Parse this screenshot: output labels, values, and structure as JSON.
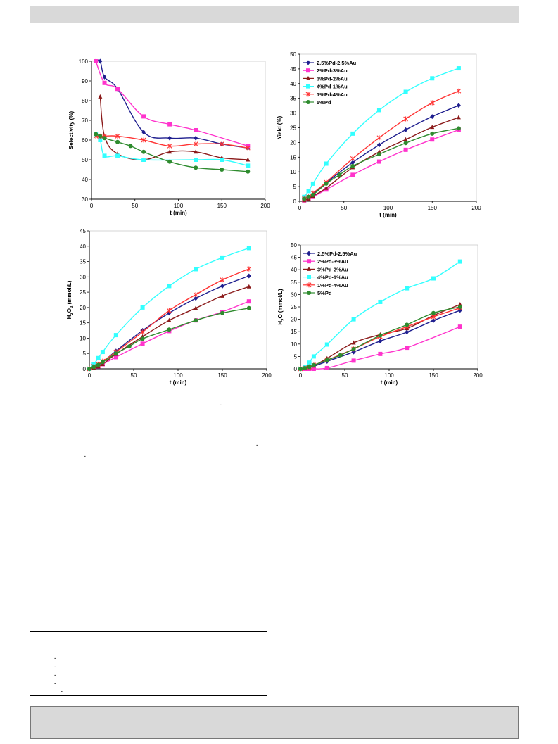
{
  "footnote_marks": [
    "-",
    "-",
    "-",
    "-",
    "-",
    "-",
    "-",
    "-",
    "-",
    "-"
  ],
  "chart_data": [
    {
      "id": "selectivity",
      "type": "line",
      "xlabel": "t (min)",
      "ylabel": "Selectivity (%)",
      "xlim": [
        0,
        200
      ],
      "ylim": [
        30,
        100
      ],
      "xticks": [
        0,
        50,
        100,
        150,
        200
      ],
      "yticks": [
        30,
        40,
        50,
        60,
        70,
        80,
        90,
        100
      ],
      "legend": false,
      "series": [
        {
          "name": "2.5%Pd-2.5%Au",
          "color": "#1f1f8f",
          "marker": "diamond",
          "x": [
            5,
            10,
            15,
            30,
            60,
            90,
            120,
            150,
            180
          ],
          "y": [
            100,
            100,
            92,
            86,
            64,
            61,
            61,
            58,
            56
          ]
        },
        {
          "name": "2%Pd-3%Au",
          "color": "#ff33cc",
          "marker": "square",
          "x": [
            5,
            15,
            30,
            60,
            90,
            120,
            180
          ],
          "y": [
            100,
            89,
            86,
            72,
            68,
            65,
            57
          ]
        },
        {
          "name": "3%Pd-2%Au",
          "color": "#8b1a1a",
          "marker": "triangle",
          "x": [
            10,
            15,
            30,
            60,
            90,
            120,
            150,
            180
          ],
          "y": [
            82,
            62,
            53,
            50,
            54,
            54,
            51,
            50
          ]
        },
        {
          "name": "4%Pd-1%Au",
          "color": "#33ffff",
          "marker": "square",
          "x": [
            5,
            10,
            15,
            30,
            60,
            120,
            150,
            180
          ],
          "y": [
            63,
            60,
            52,
            52,
            50,
            50,
            50,
            47
          ]
        },
        {
          "name": "1%Pd-4%Au",
          "color": "#ff3333",
          "marker": "star",
          "x": [
            5,
            10,
            15,
            30,
            60,
            90,
            120,
            150,
            180
          ],
          "y": [
            62,
            62,
            62,
            62,
            60,
            57,
            58,
            58,
            56
          ]
        },
        {
          "name": "5%Pd",
          "color": "#2e8b2e",
          "marker": "circle",
          "x": [
            5,
            10,
            15,
            30,
            45,
            60,
            90,
            120,
            150,
            180
          ],
          "y": [
            63,
            62,
            61,
            59,
            57,
            54,
            49,
            46,
            45,
            44
          ]
        }
      ]
    },
    {
      "id": "yield",
      "type": "line",
      "xlabel": "t (min)",
      "ylabel": "Yield (%)",
      "xlim": [
        0,
        200
      ],
      "ylim": [
        0,
        50
      ],
      "xticks": [
        0,
        50,
        100,
        150,
        200
      ],
      "yticks": [
        0,
        5,
        10,
        15,
        20,
        25,
        30,
        35,
        40,
        45,
        50
      ],
      "legend": true,
      "series": [
        {
          "name": "2.5%Pd-2.5%Au",
          "color": "#1f1f8f",
          "marker": "diamond",
          "x": [
            5,
            10,
            15,
            30,
            60,
            90,
            120,
            150,
            180
          ],
          "y": [
            0.5,
            1.2,
            2.5,
            6.3,
            13.2,
            19.2,
            24.3,
            28.8,
            32.6
          ]
        },
        {
          "name": "2%Pd-3%Au",
          "color": "#ff33cc",
          "marker": "square",
          "x": [
            5,
            10,
            15,
            30,
            60,
            90,
            120,
            150,
            180
          ],
          "y": [
            0.3,
            0.8,
            1.5,
            4.0,
            9.0,
            13.5,
            17.5,
            21.0,
            24.3
          ]
        },
        {
          "name": "3%Pd-2%Au",
          "color": "#8b1a1a",
          "marker": "triangle",
          "x": [
            5,
            10,
            15,
            30,
            60,
            90,
            120,
            150,
            180
          ],
          "y": [
            0.3,
            0.8,
            1.8,
            4.5,
            11.5,
            16.8,
            21.0,
            25.2,
            28.5
          ]
        },
        {
          "name": "4%Pd-1%Au",
          "color": "#33ffff",
          "marker": "square",
          "x": [
            5,
            10,
            15,
            30,
            60,
            90,
            120,
            150,
            180
          ],
          "y": [
            1.5,
            3.5,
            6.0,
            12.8,
            23.0,
            31.0,
            37.2,
            41.8,
            45.2
          ]
        },
        {
          "name": "1%Pd-4%Au",
          "color": "#ff3333",
          "marker": "star",
          "x": [
            5,
            10,
            15,
            30,
            60,
            90,
            120,
            150,
            180
          ],
          "y": [
            0.8,
            1.5,
            2.8,
            6.5,
            14.5,
            21.6,
            28.0,
            33.5,
            37.5
          ]
        },
        {
          "name": "5%Pd",
          "color": "#2e8b2e",
          "marker": "circle",
          "x": [
            5,
            10,
            15,
            30,
            45,
            60,
            90,
            120,
            150,
            180
          ],
          "y": [
            0.8,
            1.5,
            2.2,
            6.0,
            9.0,
            12.0,
            16.0,
            19.8,
            23.0,
            24.8
          ]
        }
      ]
    },
    {
      "id": "h2o2",
      "type": "line",
      "xlabel": "t (min)",
      "ylabel": "H2O2 (mmol/L)",
      "ylabel_main": "H",
      "ylabel_sub1": "2",
      "ylabel_mid": "O",
      "ylabel_sub2": "2",
      "ylabel_tail": " (mmol/L)",
      "xlim": [
        0,
        200
      ],
      "ylim": [
        0,
        45
      ],
      "xticks": [
        0,
        50,
        100,
        150,
        200
      ],
      "yticks": [
        0,
        5,
        10,
        15,
        20,
        25,
        30,
        35,
        40,
        45
      ],
      "legend": false,
      "series": [
        {
          "name": "2.5%Pd-2.5%Au",
          "color": "#1f1f8f",
          "marker": "diamond",
          "x": [
            0,
            5,
            10,
            15,
            30,
            60,
            90,
            120,
            150,
            180
          ],
          "y": [
            0,
            0.5,
            1.2,
            2.2,
            5.8,
            12.5,
            18.2,
            23.0,
            27.0,
            30.3
          ]
        },
        {
          "name": "2%Pd-3%Au",
          "color": "#ff33cc",
          "marker": "square",
          "x": [
            0,
            5,
            10,
            15,
            30,
            60,
            90,
            120,
            150,
            180
          ],
          "y": [
            0,
            0.3,
            0.8,
            1.5,
            3.8,
            8.2,
            12.3,
            15.8,
            18.6,
            22.0
          ]
        },
        {
          "name": "3%Pd-2%Au",
          "color": "#8b1a1a",
          "marker": "triangle",
          "x": [
            0,
            5,
            10,
            15,
            30,
            60,
            90,
            120,
            150,
            180
          ],
          "y": [
            0,
            0.3,
            0.8,
            1.5,
            4.8,
            10.5,
            15.8,
            19.8,
            23.8,
            26.8
          ]
        },
        {
          "name": "4%Pd-1%Au",
          "color": "#33ffff",
          "marker": "square",
          "x": [
            0,
            5,
            10,
            15,
            30,
            60,
            90,
            120,
            150,
            180
          ],
          "y": [
            0,
            1.5,
            3.5,
            5.5,
            11.0,
            20.0,
            27.0,
            32.5,
            36.3,
            39.4
          ]
        },
        {
          "name": "1%Pd-4%Au",
          "color": "#ff3333",
          "marker": "star",
          "x": [
            0,
            5,
            10,
            15,
            30,
            60,
            90,
            120,
            150,
            180
          ],
          "y": [
            0,
            0.8,
            1.5,
            2.5,
            5.5,
            12.0,
            19.0,
            24.2,
            29.0,
            32.6
          ]
        },
        {
          "name": "5%Pd",
          "color": "#2e8b2e",
          "marker": "circle",
          "x": [
            0,
            5,
            10,
            15,
            30,
            45,
            60,
            90,
            120,
            150,
            180
          ],
          "y": [
            0,
            0.6,
            1.3,
            2.2,
            5.0,
            7.3,
            9.8,
            12.8,
            15.8,
            18.2,
            19.8
          ]
        }
      ]
    },
    {
      "id": "h2o",
      "type": "line",
      "xlabel": "t (min)",
      "ylabel": "H2O (mmol/L)",
      "ylabel_main": "H",
      "ylabel_sub1": "2",
      "ylabel_mid": "O",
      "ylabel_sub2": "",
      "ylabel_tail": " (mmol/L)",
      "xlim": [
        0,
        200
      ],
      "ylim": [
        0,
        50
      ],
      "xticks": [
        0,
        50,
        100,
        150,
        200
      ],
      "yticks": [
        0,
        5,
        10,
        15,
        20,
        25,
        30,
        35,
        40,
        45,
        50
      ],
      "legend": true,
      "series": [
        {
          "name": "2.5%Pd-2.5%Au",
          "color": "#1f1f8f",
          "marker": "diamond",
          "x": [
            0,
            5,
            10,
            15,
            30,
            60,
            90,
            120,
            150,
            180
          ],
          "y": [
            0,
            0.2,
            0.5,
            1.0,
            3.0,
            6.8,
            11.2,
            14.8,
            19.5,
            23.6
          ]
        },
        {
          "name": "2%Pd-3%Au",
          "color": "#ff33cc",
          "marker": "square",
          "x": [
            0,
            5,
            10,
            15,
            30,
            60,
            90,
            120,
            180
          ],
          "y": [
            0,
            0,
            0,
            0,
            0.3,
            3.3,
            6.0,
            8.5,
            17.0
          ]
        },
        {
          "name": "3%Pd-2%Au",
          "color": "#8b1a1a",
          "marker": "triangle",
          "x": [
            0,
            5,
            10,
            15,
            30,
            60,
            90,
            120,
            150,
            180
          ],
          "y": [
            0,
            0.2,
            0.6,
            1.2,
            4.2,
            10.5,
            13.8,
            16.3,
            21.5,
            26.0
          ]
        },
        {
          "name": "4%Pd-1%Au",
          "color": "#33ffff",
          "marker": "square",
          "x": [
            0,
            5,
            10,
            15,
            30,
            60,
            90,
            120,
            150,
            180
          ],
          "y": [
            0,
            0.8,
            2.5,
            5.0,
            9.8,
            20.0,
            27.0,
            32.5,
            36.5,
            43.3
          ]
        },
        {
          "name": "1%Pd-4%Au",
          "color": "#ff3333",
          "marker": "star",
          "x": [
            0,
            5,
            10,
            15,
            30,
            60,
            90,
            120,
            150,
            180
          ],
          "y": [
            0,
            0.3,
            0.8,
            1.5,
            3.5,
            8.0,
            13.0,
            17.0,
            21.0,
            24.6
          ]
        },
        {
          "name": "5%Pd",
          "color": "#2e8b2e",
          "marker": "circle",
          "x": [
            0,
            5,
            10,
            15,
            30,
            45,
            60,
            90,
            120,
            150,
            180
          ],
          "y": [
            0,
            0.3,
            0.8,
            1.5,
            3.5,
            5.5,
            8.0,
            13.5,
            17.8,
            22.5,
            25.0
          ]
        }
      ]
    }
  ]
}
